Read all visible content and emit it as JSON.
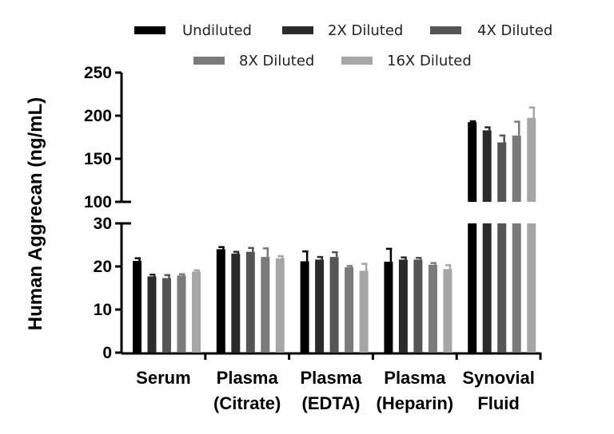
{
  "chart_data": {
    "type": "bar",
    "ylabel": "Human Aggrecan (ng/mL)",
    "xlabel": "",
    "legend_position": "top",
    "categories": [
      [
        "Serum"
      ],
      [
        "Plasma",
        "(Citrate)"
      ],
      [
        "Plasma",
        "(EDTA)"
      ],
      [
        "Plasma",
        "(Heparin)"
      ],
      [
        "Synovial",
        "Fluid"
      ]
    ],
    "series": [
      {
        "name": "Undiluted",
        "color": "#000000",
        "values": [
          21.3,
          24.0,
          21.2,
          21.1,
          192.5
        ],
        "errors": [
          0.6,
          0.5,
          2.3,
          3.0,
          1.0
        ]
      },
      {
        "name": "2X Diluted",
        "color": "#2b2b2b",
        "values": [
          17.7,
          23.0,
          21.6,
          21.6,
          183.0
        ],
        "errors": [
          0.4,
          0.4,
          0.6,
          0.5,
          3.5
        ]
      },
      {
        "name": "4X Diluted",
        "color": "#555555",
        "values": [
          17.3,
          23.4,
          22.2,
          21.6,
          169.0
        ],
        "errors": [
          0.7,
          0.9,
          1.1,
          0.4,
          8.0
        ]
      },
      {
        "name": "8X Diluted",
        "color": "#7a7a7a",
        "values": [
          17.9,
          22.2,
          19.8,
          20.4,
          177.0
        ],
        "errors": [
          0.3,
          2.0,
          0.3,
          0.4,
          16.0
        ]
      },
      {
        "name": "16X Diluted",
        "color": "#a6a6a6",
        "values": [
          18.8,
          21.9,
          19.0,
          19.4,
          197.5
        ],
        "errors": [
          0.3,
          0.5,
          1.6,
          0.9,
          12.0
        ]
      }
    ],
    "y_segments": [
      {
        "range": [
          0,
          30
        ],
        "ticks": [
          0,
          10,
          20,
          30
        ]
      },
      {
        "range": [
          100,
          250
        ],
        "ticks": [
          100,
          150,
          200,
          250
        ]
      }
    ],
    "grid": false
  }
}
